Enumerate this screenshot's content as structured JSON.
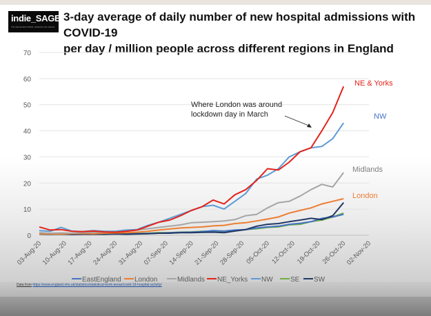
{
  "logo": {
    "text": "indie_SAGE",
    "tagline": "The Independent SAGE • Following the science"
  },
  "title_line1": "3-day average of daily number of new hospital admissions with COVID-19",
  "title_line2": "per day / million people across different regions in England",
  "source": {
    "label": "Data from",
    "url": "https://www.england.nhs.uk/statistics/statistical-work-areas/covid-19-hospital-activity/"
  },
  "chart_data": {
    "type": "line",
    "title": "3-day average of daily number of new hospital admissions with COVID-19 per day / million people across different regions in England",
    "xlabel": "",
    "ylabel": "",
    "ylim": [
      0,
      70
    ],
    "yticks": [
      0,
      10,
      20,
      30,
      40,
      50,
      60,
      70
    ],
    "xlim_days": [
      0,
      91
    ],
    "xticks": [
      "03-Aug-20",
      "10-Aug-20",
      "17-Aug-20",
      "24-Aug-20",
      "31-Aug-20",
      "07-Sep-20",
      "14-Sep-20",
      "21-Sep-20",
      "28-Sep-20",
      "05-Oct-20",
      "12-Oct-20",
      "19-Oct-20",
      "26-Oct-20",
      "02-Nov-20"
    ],
    "grid": "horizontal",
    "legend_position": "bottom",
    "x_days": [
      0,
      3,
      6,
      9,
      12,
      15,
      18,
      21,
      24,
      27,
      30,
      33,
      36,
      39,
      42,
      45,
      48,
      51,
      54,
      57,
      60,
      63,
      66,
      69,
      72,
      75,
      78,
      81,
      84
    ],
    "series": [
      {
        "name": "EastEngland",
        "color": "#4472c4",
        "values": [
          0.8,
          0.6,
          0.5,
          0.5,
          0.6,
          0.5,
          0.6,
          0.7,
          0.6,
          0.6,
          0.7,
          0.8,
          1.0,
          1.1,
          1.2,
          1.4,
          1.8,
          1.6,
          2.0,
          2.2,
          2.8,
          3.2,
          3.5,
          4.2,
          4.6,
          5.2,
          6.5,
          7.0,
          8.0
        ]
      },
      {
        "name": "London",
        "color": "#ed7d31",
        "values": [
          0.6,
          0.5,
          0.5,
          0.6,
          0.7,
          0.6,
          0.8,
          0.9,
          1.0,
          1.2,
          1.5,
          2.0,
          2.4,
          2.8,
          3.0,
          3.2,
          3.6,
          3.8,
          4.5,
          4.8,
          5.5,
          6.2,
          7.0,
          8.5,
          9.5,
          10.5,
          12.0,
          13.0,
          14.0
        ]
      },
      {
        "name": "Midlands",
        "color": "#a5a5a5",
        "values": [
          1.0,
          0.8,
          0.9,
          0.8,
          1.0,
          1.1,
          1.2,
          1.3,
          1.6,
          2.0,
          2.5,
          3.0,
          3.5,
          4.0,
          4.8,
          5.0,
          5.2,
          5.5,
          6.0,
          7.5,
          8.0,
          10.5,
          12.5,
          13.0,
          15.0,
          17.5,
          19.5,
          18.5,
          24.0
        ]
      },
      {
        "name": "NE_Yorks",
        "color": "#e2231a",
        "values": [
          3.2,
          2.0,
          2.2,
          1.5,
          1.4,
          1.6,
          1.3,
          1.2,
          1.5,
          2.0,
          3.5,
          5.0,
          5.8,
          7.5,
          9.5,
          11.0,
          13.5,
          12.0,
          15.5,
          17.5,
          21.0,
          25.5,
          25.0,
          28.0,
          32.0,
          33.5,
          40.0,
          47.0,
          57.0
        ]
      },
      {
        "name": "NW",
        "color": "#5b9bd5",
        "values": [
          1.8,
          1.5,
          3.0,
          1.6,
          1.4,
          1.8,
          1.5,
          1.5,
          2.0,
          2.2,
          3.8,
          5.0,
          6.5,
          8.0,
          9.5,
          11.0,
          11.5,
          10.0,
          13.0,
          16.0,
          21.5,
          23.0,
          25.5,
          30.0,
          32.0,
          33.5,
          34.0,
          37.0,
          43.0
        ]
      },
      {
        "name": "SE",
        "color": "#70ad47",
        "values": [
          0.5,
          0.4,
          0.4,
          0.4,
          0.5,
          0.4,
          0.5,
          0.6,
          0.6,
          0.7,
          0.8,
          1.0,
          1.0,
          1.2,
          1.3,
          1.5,
          1.5,
          1.3,
          1.8,
          2.2,
          2.5,
          3.0,
          3.2,
          4.0,
          4.2,
          5.2,
          5.8,
          7.0,
          8.5
        ]
      },
      {
        "name": "SW",
        "color": "#203864",
        "values": [
          0.5,
          0.4,
          0.5,
          0.3,
          0.4,
          0.4,
          0.4,
          0.5,
          0.4,
          0.5,
          0.6,
          0.8,
          0.8,
          1.0,
          1.0,
          1.1,
          1.2,
          1.0,
          1.6,
          2.2,
          3.5,
          4.2,
          4.5,
          5.2,
          5.8,
          6.5,
          6.0,
          7.5,
          12.5
        ]
      }
    ],
    "series_labels": [
      {
        "text": "NE & Yorks",
        "series": "NE_Yorks",
        "color": "#e2231a"
      },
      {
        "text": "NW",
        "series": "NW",
        "color": "#4472c4"
      },
      {
        "text": "Midlands",
        "series": "Midlands",
        "color": "#7f7f7f"
      },
      {
        "text": "London",
        "series": "London",
        "color": "#ed7d31"
      }
    ],
    "annotations": [
      {
        "text_line1": "Where London was around",
        "text_line2": "lockdown day in March",
        "points_to": "NE_Yorks"
      }
    ]
  }
}
